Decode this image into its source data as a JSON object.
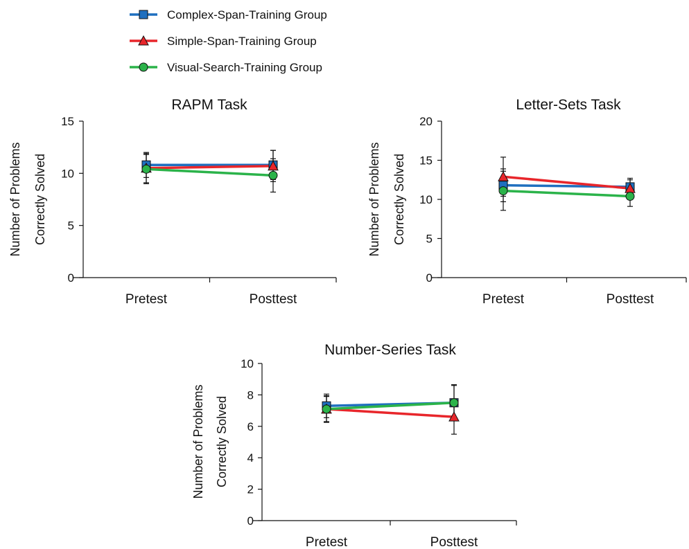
{
  "colors": {
    "Complex-Span-Training Group": "#1f6fbf",
    "Simple-Span-Training Group": "#e8262b",
    "Visual-Search-Training Group": "#2bb34a"
  },
  "legend": {
    "placement": "top-left",
    "items": [
      {
        "name": "Complex-Span-Training Group",
        "marker": "square"
      },
      {
        "name": "Simple-Span-Training Group",
        "marker": "triangle"
      },
      {
        "name": "Visual-Search-Training Group",
        "marker": "circle"
      }
    ]
  },
  "chart_data": [
    {
      "type": "line",
      "title": "RAPM Task",
      "ylabel_lines": [
        "Number of Problems",
        "Correctly Solved"
      ],
      "categories": [
        "Pretest",
        "Posttest"
      ],
      "ylim": [
        0,
        15
      ],
      "yticks": [
        0,
        5,
        10,
        15
      ],
      "grid": false,
      "series": [
        {
          "name": "Complex-Span-Training Group",
          "marker": "square",
          "values": [
            10.8,
            10.8
          ],
          "errors": [
            1.2,
            1.4
          ]
        },
        {
          "name": "Simple-Span-Training Group",
          "marker": "triangle",
          "values": [
            10.5,
            10.7
          ],
          "errors": [
            1.4,
            1.5
          ]
        },
        {
          "name": "Visual-Search-Training Group",
          "marker": "circle",
          "values": [
            10.4,
            9.8
          ],
          "errors": [
            1.4,
            1.6
          ]
        }
      ]
    },
    {
      "type": "line",
      "title": "Letter-Sets Task",
      "ylabel_lines": [
        "Number of Problems",
        "Correctly Solved"
      ],
      "categories": [
        "Pretest",
        "Posttest"
      ],
      "ylim": [
        0,
        20
      ],
      "yticks": [
        0,
        5,
        10,
        15,
        20
      ],
      "grid": false,
      "series": [
        {
          "name": "Complex-Span-Training Group",
          "marker": "square",
          "values": [
            11.8,
            11.6
          ],
          "errors": [
            2.1,
            1.1
          ]
        },
        {
          "name": "Simple-Span-Training Group",
          "marker": "triangle",
          "values": [
            12.9,
            11.4
          ],
          "errors": [
            2.5,
            1.1
          ]
        },
        {
          "name": "Visual-Search-Training Group",
          "marker": "circle",
          "values": [
            11.1,
            10.4
          ],
          "errors": [
            2.5,
            1.3
          ]
        }
      ]
    },
    {
      "type": "line",
      "title": "Number-Series Task",
      "ylabel_lines": [
        "Number of Problems",
        "Correctly Solved"
      ],
      "categories": [
        "Pretest",
        "Posttest"
      ],
      "ylim": [
        0,
        10
      ],
      "yticks": [
        0,
        2,
        4,
        6,
        8,
        10
      ],
      "grid": false,
      "series": [
        {
          "name": "Complex-Span-Training Group",
          "marker": "square",
          "values": [
            7.3,
            7.5
          ],
          "errors": [
            0.75,
            1.1
          ]
        },
        {
          "name": "Simple-Span-Training Group",
          "marker": "triangle",
          "values": [
            7.1,
            6.6
          ],
          "errors": [
            0.8,
            1.1
          ]
        },
        {
          "name": "Visual-Search-Training Group",
          "marker": "circle",
          "values": [
            7.1,
            7.5
          ],
          "errors": [
            0.85,
            1.15
          ]
        }
      ]
    }
  ]
}
